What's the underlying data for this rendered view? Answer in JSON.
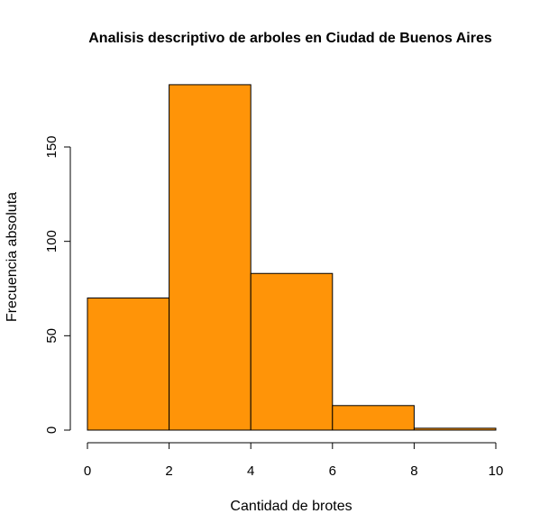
{
  "chart_data": {
    "type": "bar",
    "subtype": "histogram",
    "title": "Analisis descriptivo de arboles en Ciudad de Buenos Aires",
    "xlabel": "Cantidad de brotes",
    "ylabel": "Frecuencia absoluta",
    "bins": [
      {
        "from": 0,
        "to": 2,
        "value": 70
      },
      {
        "from": 2,
        "to": 4,
        "value": 183
      },
      {
        "from": 4,
        "to": 6,
        "value": 83
      },
      {
        "from": 6,
        "to": 8,
        "value": 13
      },
      {
        "from": 8,
        "to": 10,
        "value": 1
      }
    ],
    "xlim": [
      0,
      10
    ],
    "ylim": [
      0,
      183
    ],
    "x_ticks": [
      0,
      2,
      4,
      6,
      8,
      10
    ],
    "y_ticks": [
      0,
      50,
      100,
      150
    ],
    "bar_color": "#FF9408",
    "grid": false,
    "legend": "none"
  }
}
